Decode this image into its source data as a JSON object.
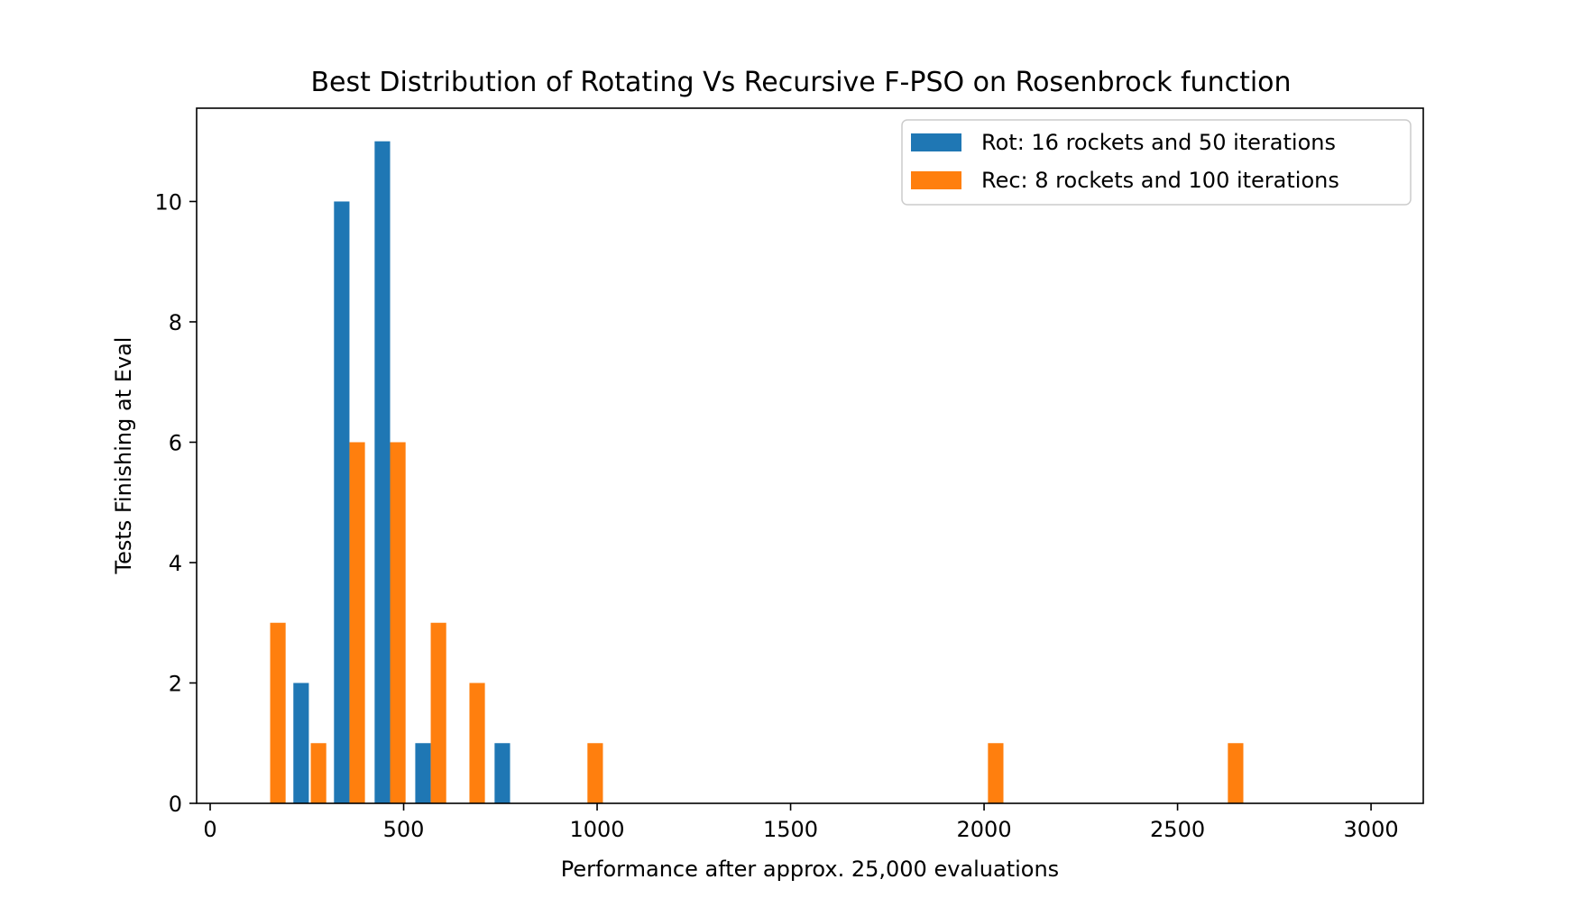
{
  "chart_data": {
    "type": "bar",
    "title": "Best Distribution of Rotating Vs Recursive F-PSO on Rosenbrock function",
    "xlabel": "Performance after approx. 25,000 evaluations",
    "ylabel": "Tests Finishing at Eval",
    "xlim": [
      -35,
      3135
    ],
    "ylim": [
      0,
      11.55
    ],
    "xticks": [
      0,
      500,
      1000,
      1500,
      2000,
      2500,
      3000
    ],
    "yticks": [
      0,
      2,
      4,
      6,
      8,
      10
    ],
    "bar_width": 40,
    "legend_position": "top-right",
    "series": [
      {
        "name": "Rot: 16 rockets and 50 iterations",
        "color": "#1f77b4",
        "bars": [
          {
            "x": 235,
            "value": 2
          },
          {
            "x": 340,
            "value": 10
          },
          {
            "x": 445,
            "value": 11
          },
          {
            "x": 550,
            "value": 1
          },
          {
            "x": 755,
            "value": 1
          }
        ]
      },
      {
        "name": "Rec: 8 rockets and 100 iterations",
        "color": "#ff7f0e",
        "bars": [
          {
            "x": 175,
            "value": 3
          },
          {
            "x": 280,
            "value": 1
          },
          {
            "x": 380,
            "value": 6
          },
          {
            "x": 485,
            "value": 6
          },
          {
            "x": 590,
            "value": 3
          },
          {
            "x": 690,
            "value": 2
          },
          {
            "x": 995,
            "value": 1
          },
          {
            "x": 2030,
            "value": 1
          },
          {
            "x": 2650,
            "value": 1
          }
        ]
      }
    ]
  }
}
